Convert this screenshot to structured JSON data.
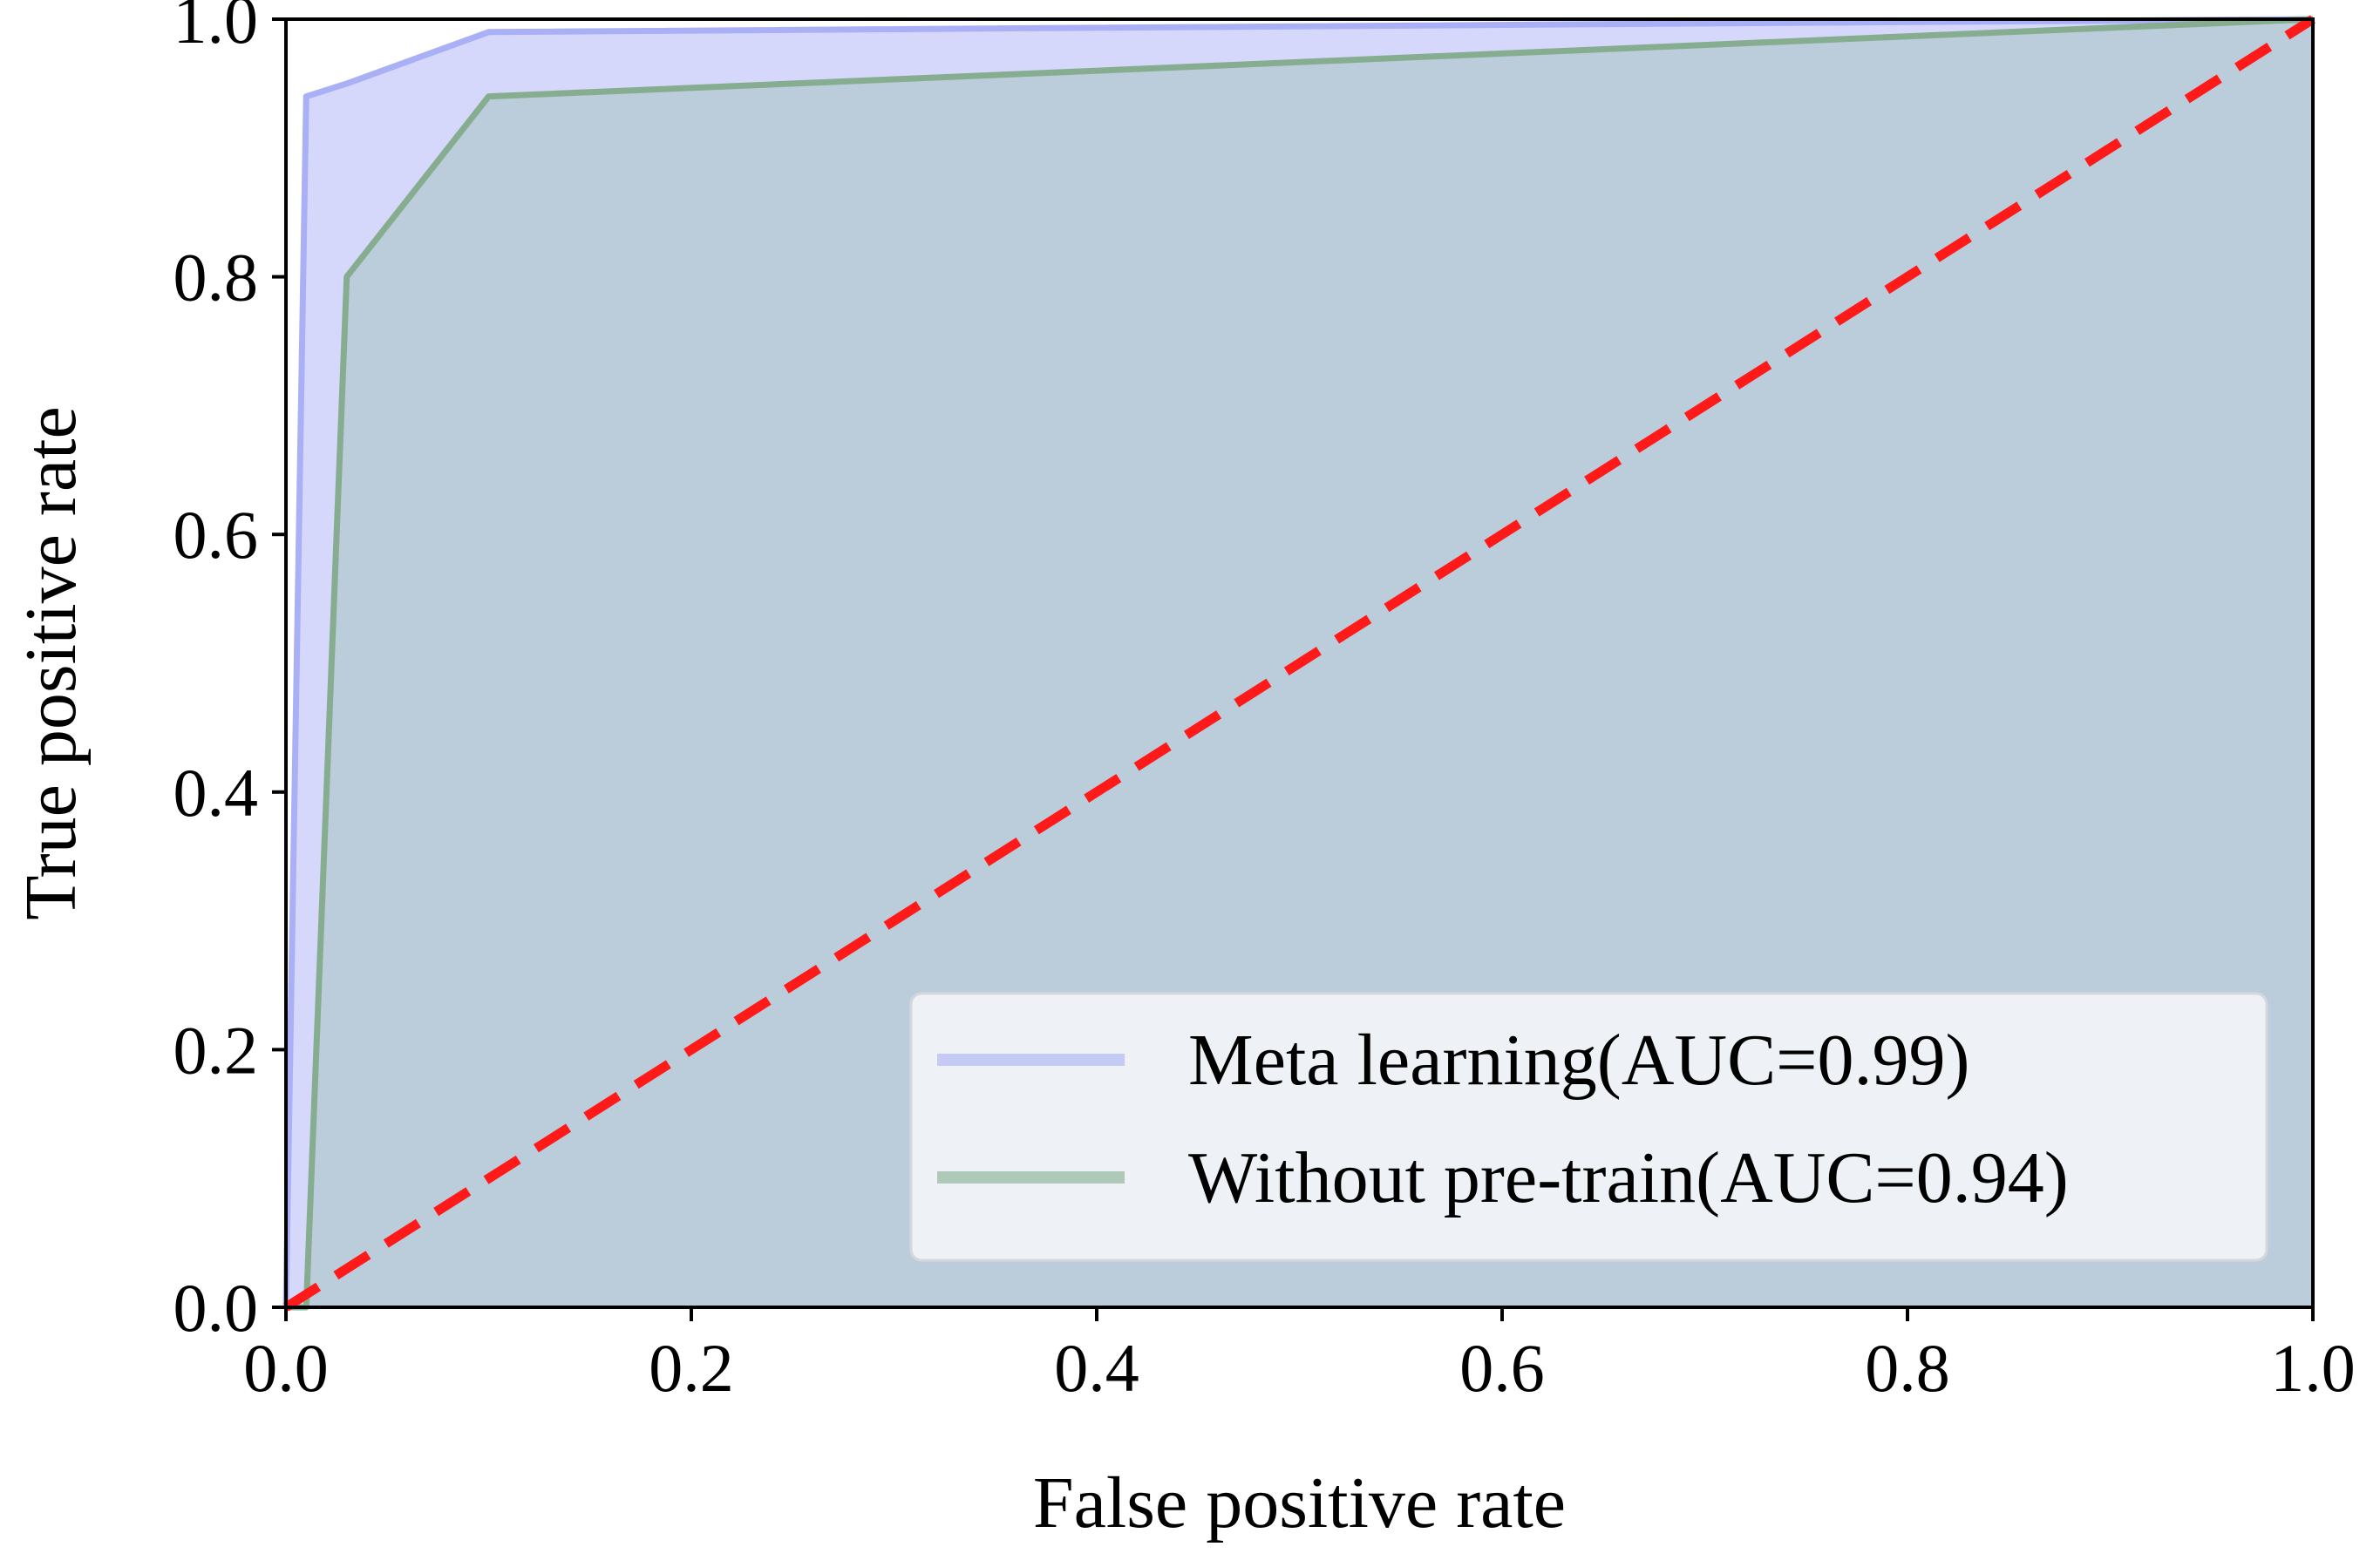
{
  "chart_data": {
    "type": "line",
    "title": "",
    "xlabel": "False positive rate",
    "ylabel": "True positive rate",
    "xlim": [
      0.0,
      1.0
    ],
    "ylim": [
      0.0,
      1.0
    ],
    "grid": false,
    "legend_position": "lower-right",
    "x_ticks": [
      {
        "value": 0.0,
        "label": "0.0"
      },
      {
        "value": 0.2,
        "label": "0.2"
      },
      {
        "value": 0.4,
        "label": "0.4"
      },
      {
        "value": 0.6,
        "label": "0.6"
      },
      {
        "value": 0.8,
        "label": "0.8"
      },
      {
        "value": 1.0,
        "label": "1.0"
      }
    ],
    "y_ticks": [
      {
        "value": 0.0,
        "label": "0.0"
      },
      {
        "value": 0.2,
        "label": "0.2"
      },
      {
        "value": 0.4,
        "label": "0.4"
      },
      {
        "value": 0.6,
        "label": "0.6"
      },
      {
        "value": 0.8,
        "label": "0.8"
      },
      {
        "value": 1.0,
        "label": "1.0"
      }
    ],
    "series": [
      {
        "name": "Meta learning(AUC=0.99)",
        "color": "#aab0f5",
        "fill_color": "#d6d8fb",
        "x": [
          0.0,
          0.01,
          0.03,
          0.1,
          1.0
        ],
        "y": [
          0.0,
          0.94,
          0.95,
          0.99,
          1.0
        ]
      },
      {
        "name": "Without pre-train(AUC=0.94)",
        "color": "#86ad8f",
        "fill_color": "#b9cbd8",
        "x": [
          0.0,
          0.01,
          0.03,
          0.1,
          1.0
        ],
        "y": [
          0.0,
          0.0,
          0.8,
          0.94,
          1.0
        ]
      }
    ],
    "reference_line": {
      "x": [
        0.0,
        1.0
      ],
      "y": [
        0.0,
        1.0
      ],
      "color": "#ff1a1a",
      "style": "dashed"
    }
  }
}
